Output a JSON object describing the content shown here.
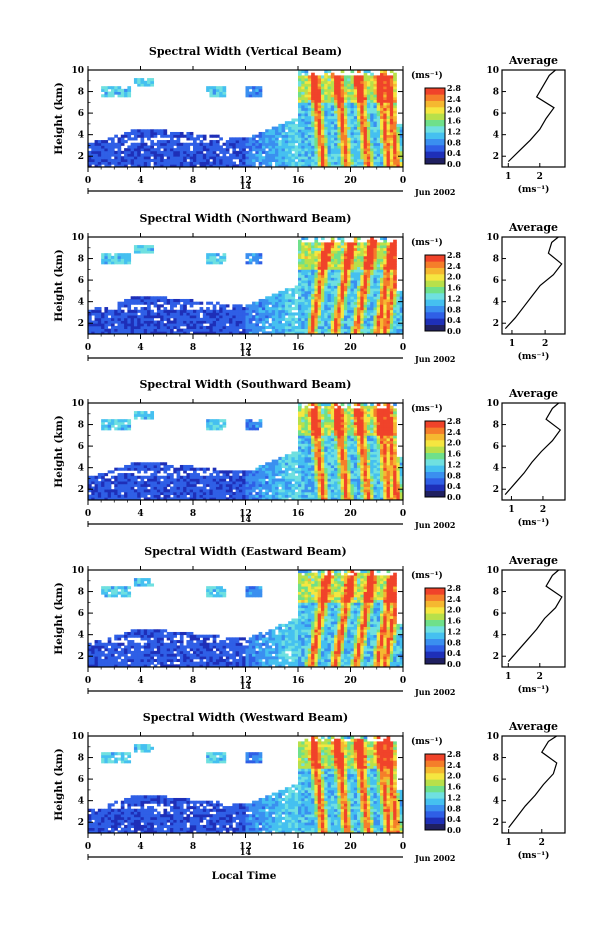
{
  "figure": {
    "xlabel": "Local Time",
    "date_label": "Jun 2002",
    "day_label": "14",
    "ylabel": "Height (km)",
    "colorbar_unit": "(ms⁻¹)",
    "average_title": "Average",
    "average_xlabel": "(ms⁻¹)"
  },
  "colormap": [
    "#202060",
    "#1e2fb8",
    "#2f5fe6",
    "#3a8ff0",
    "#45c0f0",
    "#6fe0e0",
    "#6fe08a",
    "#b8e04a",
    "#f5e640",
    "#f5b830",
    "#f57e2a",
    "#f0432a"
  ],
  "chart_data": [
    {
      "type": "heatmap",
      "title": "Spectral Width (Vertical Beam)",
      "x_range": [
        0,
        24
      ],
      "x_ticks": [
        "0",
        "4",
        "8",
        "12",
        "16",
        "20",
        "0"
      ],
      "y_range": [
        1,
        10
      ],
      "y_ticks": [
        "2",
        "4",
        "6",
        "8",
        "10"
      ],
      "colorbar_ticks": [
        "0.0",
        "0.4",
        "0.8",
        "1.2",
        "1.6",
        "2.0",
        "2.4",
        "2.8"
      ],
      "colorbar_range": [
        0,
        2.8
      ],
      "average_profile": {
        "x_ticks": [
          "1",
          "2"
        ],
        "x_range": [
          0.8,
          2.8
        ],
        "heights": [
          1.5,
          2.5,
          3.5,
          4.5,
          5.5,
          6.5,
          7.5,
          8.5,
          9.5,
          10.0
        ],
        "values": [
          1.0,
          1.35,
          1.7,
          2.0,
          2.2,
          2.45,
          1.9,
          2.1,
          2.3,
          2.5
        ]
      }
    },
    {
      "type": "heatmap",
      "title": "Spectral Width (Northward Beam)",
      "x_range": [
        0,
        24
      ],
      "x_ticks": [
        "0",
        "4",
        "8",
        "12",
        "16",
        "20",
        "0"
      ],
      "y_range": [
        1,
        10
      ],
      "y_ticks": [
        "2",
        "4",
        "6",
        "8",
        "10"
      ],
      "colorbar_ticks": [
        "0.0",
        "0.4",
        "0.8",
        "1.2",
        "1.6",
        "2.0",
        "2.4",
        "2.8"
      ],
      "colorbar_range": [
        0,
        2.8
      ],
      "average_profile": {
        "x_ticks": [
          "1",
          "2"
        ],
        "x_range": [
          0.7,
          2.6
        ],
        "heights": [
          1.5,
          2.5,
          3.5,
          4.5,
          5.5,
          6.5,
          7.5,
          8.5,
          9.5,
          10.0
        ],
        "values": [
          0.8,
          1.1,
          1.35,
          1.6,
          1.85,
          2.25,
          2.5,
          2.1,
          2.2,
          2.4
        ]
      }
    },
    {
      "type": "heatmap",
      "title": "Spectral Width (Southward Beam)",
      "x_range": [
        0,
        24
      ],
      "x_ticks": [
        "0",
        "4",
        "8",
        "12",
        "16",
        "20",
        "0"
      ],
      "y_range": [
        1,
        10
      ],
      "y_ticks": [
        "2",
        "4",
        "6",
        "8",
        "10"
      ],
      "colorbar_ticks": [
        "0.0",
        "0.4",
        "0.8",
        "1.2",
        "1.6",
        "2.0",
        "2.4",
        "2.8"
      ],
      "colorbar_range": [
        0,
        2.8
      ],
      "average_profile": {
        "x_ticks": [
          "1",
          "2"
        ],
        "x_range": [
          0.7,
          2.7
        ],
        "heights": [
          1.5,
          2.5,
          3.5,
          4.5,
          5.5,
          6.5,
          7.5,
          8.5,
          9.5,
          10.0
        ],
        "values": [
          0.8,
          1.1,
          1.4,
          1.65,
          1.95,
          2.3,
          2.55,
          2.1,
          2.3,
          2.5
        ]
      }
    },
    {
      "type": "heatmap",
      "title": "Spectral Width (Eastward Beam)",
      "x_range": [
        0,
        24
      ],
      "x_ticks": [
        "0",
        "4",
        "8",
        "12",
        "16",
        "20",
        "0"
      ],
      "y_range": [
        1,
        10
      ],
      "y_ticks": [
        "2",
        "4",
        "6",
        "8",
        "10"
      ],
      "colorbar_ticks": [
        "0.0",
        "0.4",
        "0.8",
        "1.2",
        "1.6",
        "2.0",
        "2.4",
        "2.8"
      ],
      "colorbar_range": [
        0,
        2.8
      ],
      "average_profile": {
        "x_ticks": [
          "1",
          "2"
        ],
        "x_range": [
          0.8,
          2.8
        ],
        "heights": [
          1.5,
          2.5,
          3.5,
          4.5,
          5.5,
          6.5,
          7.5,
          8.5,
          9.5,
          10.0
        ],
        "values": [
          1.0,
          1.3,
          1.6,
          1.9,
          2.15,
          2.5,
          2.7,
          2.2,
          2.4,
          2.6
        ]
      }
    },
    {
      "type": "heatmap",
      "title": "Spectral Width (Westward Beam)",
      "x_range": [
        0,
        24
      ],
      "x_ticks": [
        "0",
        "4",
        "8",
        "12",
        "16",
        "20",
        "0"
      ],
      "y_range": [
        1,
        10
      ],
      "y_ticks": [
        "2",
        "4",
        "6",
        "8",
        "10"
      ],
      "colorbar_ticks": [
        "0.0",
        "0.4",
        "0.8",
        "1.2",
        "1.6",
        "2.0",
        "2.4",
        "2.8"
      ],
      "colorbar_range": [
        0,
        2.8
      ],
      "average_profile": {
        "x_ticks": [
          "1",
          "2"
        ],
        "x_range": [
          0.8,
          2.7
        ],
        "heights": [
          1.5,
          2.5,
          3.5,
          4.5,
          5.5,
          6.5,
          7.5,
          8.5,
          9.5,
          10.0
        ],
        "values": [
          1.0,
          1.25,
          1.5,
          1.8,
          2.05,
          2.35,
          2.45,
          2.0,
          2.2,
          2.45
        ]
      }
    }
  ]
}
